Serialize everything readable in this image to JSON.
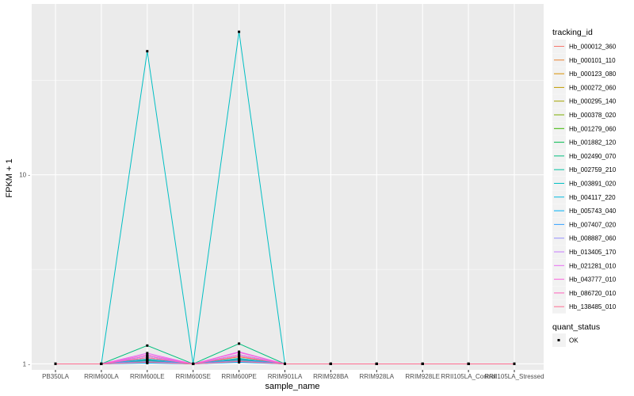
{
  "chart_data": {
    "type": "line",
    "xlabel": "sample_name",
    "ylabel": "FPKM + 1",
    "y_scale": "log10",
    "ylim": [
      0.93,
      80
    ],
    "y_ticks": [
      1,
      10
    ],
    "y_tick_labels": [
      "1 -",
      "10 -"
    ],
    "grid": true,
    "legend_position": "right",
    "categories": [
      "PB350LA",
      "RRIM600LA",
      "RRIM600LE",
      "RRIM600SE",
      "RRIM600PE",
      "RRIM901LA",
      "RRIM928BA",
      "RRIM928LA",
      "RRIM928LE",
      "RRII105LA_Control",
      "RRII105LA_Stressed"
    ],
    "series": [
      {
        "name": "Hb_000012_360",
        "color": "#F8766D",
        "values": [
          1,
          1,
          1.05,
          1,
          1.06,
          1,
          1,
          1,
          1,
          1,
          1
        ]
      },
      {
        "name": "Hb_000101_110",
        "color": "#EA8331",
        "values": [
          1,
          1,
          1.08,
          1,
          1.09,
          1,
          1,
          1,
          1,
          1,
          1
        ]
      },
      {
        "name": "Hb_000123_080",
        "color": "#D89000",
        "values": [
          1,
          1,
          1.1,
          1,
          1.12,
          1,
          1,
          1,
          1,
          1,
          1
        ]
      },
      {
        "name": "Hb_000272_060",
        "color": "#C09B00",
        "values": [
          1,
          1,
          1.06,
          1,
          1.07,
          1,
          1,
          1,
          1,
          1,
          1
        ]
      },
      {
        "name": "Hb_000295_140",
        "color": "#A3A500",
        "values": [
          1,
          1,
          1.04,
          1,
          1.05,
          1,
          1,
          1,
          1,
          1,
          1
        ]
      },
      {
        "name": "Hb_000378_020",
        "color": "#7CAE00",
        "values": [
          1,
          1,
          1.03,
          1,
          1.04,
          1,
          1,
          1,
          1,
          1,
          1
        ]
      },
      {
        "name": "Hb_001279_060",
        "color": "#39B600",
        "values": [
          1,
          1,
          1.02,
          1,
          1.03,
          1,
          1,
          1,
          1,
          1,
          1
        ]
      },
      {
        "name": "Hb_001882_120",
        "color": "#00BB4E",
        "values": [
          1,
          1,
          1.04,
          1,
          1.05,
          1,
          1,
          1,
          1,
          1,
          1
        ]
      },
      {
        "name": "Hb_002490_070",
        "color": "#00BF7D",
        "values": [
          1,
          1,
          1.25,
          1,
          1.28,
          1,
          1,
          1,
          1,
          1,
          1
        ]
      },
      {
        "name": "Hb_002759_210",
        "color": "#00C1A3",
        "values": [
          1,
          1,
          1.06,
          1,
          1.07,
          1,
          1,
          1,
          1,
          1,
          1
        ]
      },
      {
        "name": "Hb_003891_020",
        "color": "#00BFC4",
        "values": [
          1,
          1,
          45,
          1,
          57,
          1,
          1,
          1,
          1,
          1,
          1
        ]
      },
      {
        "name": "Hb_004117_220",
        "color": "#00BAE0",
        "values": [
          1,
          1,
          1.02,
          1,
          1.03,
          1,
          1,
          1,
          1,
          1,
          1
        ]
      },
      {
        "name": "Hb_005743_040",
        "color": "#00B0F6",
        "values": [
          1,
          1,
          1.01,
          1,
          1.02,
          1,
          1,
          1,
          1,
          1,
          1
        ]
      },
      {
        "name": "Hb_007407_020",
        "color": "#35A2FF",
        "values": [
          1,
          1,
          1.05,
          1,
          1.06,
          1,
          1,
          1,
          1,
          1,
          1
        ]
      },
      {
        "name": "Hb_008887_060",
        "color": "#9590FF",
        "values": [
          1,
          1,
          1.03,
          1,
          1.04,
          1,
          1,
          1,
          1,
          1,
          1
        ]
      },
      {
        "name": "Hb_013405_170",
        "color": "#C77CFF",
        "values": [
          1,
          1,
          1.1,
          1,
          1.12,
          1,
          1,
          1,
          1,
          1,
          1
        ]
      },
      {
        "name": "Hb_021281_010",
        "color": "#E76BF3",
        "values": [
          1,
          1,
          1.14,
          1,
          1.16,
          1,
          1,
          1,
          1,
          1,
          1
        ]
      },
      {
        "name": "Hb_043777_010",
        "color": "#FA62DB",
        "values": [
          1,
          1,
          1.12,
          1,
          1.15,
          1,
          1,
          1,
          1,
          1,
          1
        ]
      },
      {
        "name": "Hb_086720_010",
        "color": "#FF62BC",
        "values": [
          1,
          1,
          1.08,
          1,
          1.1,
          1,
          1,
          1,
          1,
          1,
          1
        ]
      },
      {
        "name": "Hb_138485_010",
        "color": "#FF6C91",
        "values": [
          1,
          1,
          1.02,
          1,
          1.03,
          1,
          1,
          1,
          1,
          1,
          1
        ]
      }
    ],
    "legend": {
      "tracking_title": "tracking_id",
      "quant_title": "quant_status",
      "quant_items": [
        "OK"
      ]
    },
    "colors": {
      "panel_background": "#EBEBEB",
      "grid": "#FFFFFF",
      "point": "#000000"
    }
  }
}
